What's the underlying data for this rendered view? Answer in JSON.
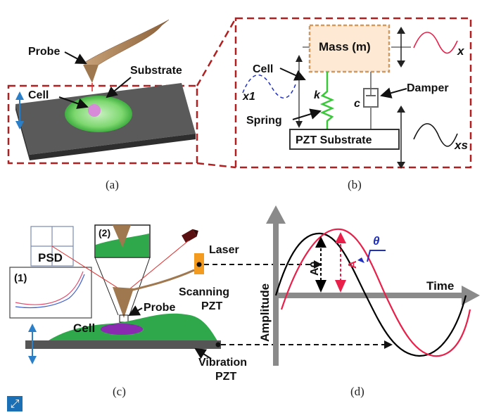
{
  "panel_a": {
    "probe": "Probe",
    "substrate": "Substrate",
    "cell": "Cell",
    "caption": "(a)"
  },
  "panel_b": {
    "mass": "Mass (m)",
    "cell": "Cell",
    "damper": "Damper",
    "spring": "Spring",
    "k": "k",
    "c": "c",
    "pzt_substrate": "PZT Substrate",
    "x": "x",
    "x1": "x1",
    "xs": "xs",
    "caption": "(b)"
  },
  "panel_c": {
    "psd": "PSD",
    "inset1": "(1)",
    "inset2": "(2)",
    "laser": "Laser",
    "scanning_pzt_1": "Scanning",
    "scanning_pzt_2": "PZT",
    "probe": "Probe",
    "cell": "Cell",
    "vibration_pzt_1": "Vibration",
    "vibration_pzt_2": "PZT",
    "caption": "(c)"
  },
  "panel_d": {
    "amplitude": "Amplitude",
    "time": "Time",
    "theta": "θ",
    "a0": "A0",
    "a": "A",
    "caption": "(d)"
  },
  "colors": {
    "dashed_box": "#b02020",
    "wave_red": "#e8204a",
    "wave_black": "#000000",
    "probe_brown": "#a07850",
    "cell_green": "#2ea84a",
    "axis_gray": "#8a8a8a",
    "arrow_blue": "#2a7fc8",
    "mass_fill": "#fde9d4",
    "mass_border": "#d09a60"
  },
  "expand_icon": "expand-icon"
}
